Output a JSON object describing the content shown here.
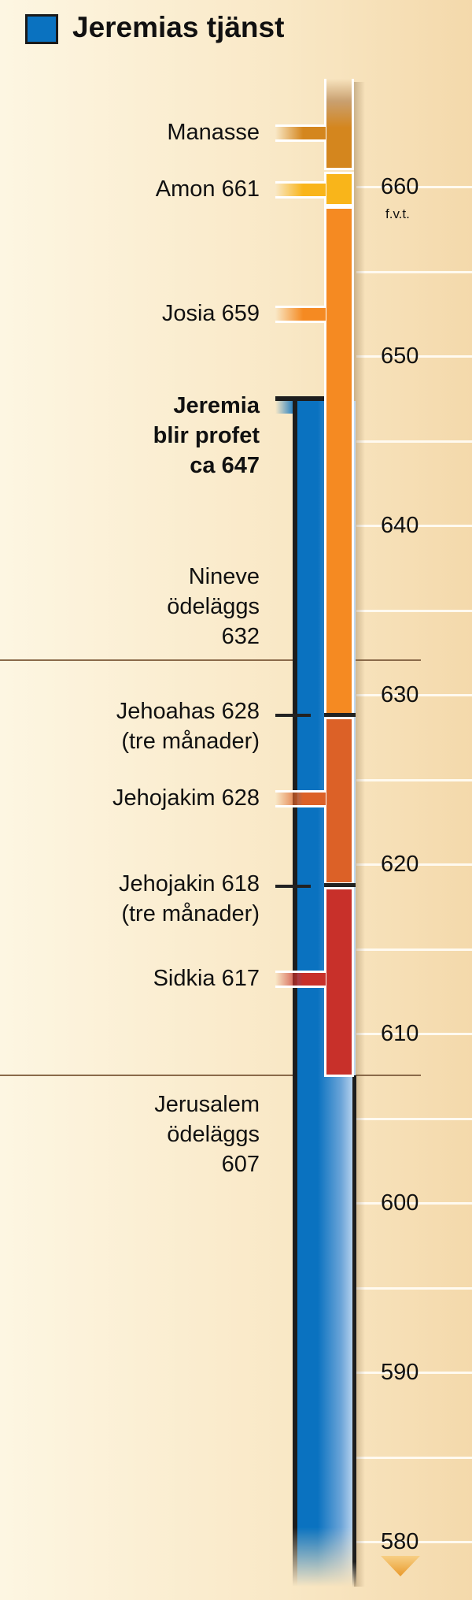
{
  "title": "Jeremias tjänst",
  "legend_color": "#0a72c0",
  "unit": "f.v.t.",
  "axis_ticks": [
    "660",
    "650",
    "640",
    "630",
    "620",
    "610",
    "600",
    "590",
    "580"
  ],
  "kings": [
    {
      "label": "Manasse",
      "color": "#d4861e"
    },
    {
      "label": "Amon 661",
      "color": "#f9b51a"
    },
    {
      "label": "Josia 659",
      "color": "#f58a22"
    },
    {
      "label": "Jehojakim 628",
      "color": "#dc6127"
    },
    {
      "label": "Sidkia 617",
      "color": "#c8302a"
    }
  ],
  "short_reigns": [
    {
      "line1": "Jehoahas 628",
      "line2": "(tre månader)"
    },
    {
      "line1": "Jehojakin 618",
      "line2": "(tre månader)"
    }
  ],
  "events": {
    "jeremia": [
      "Jeremia",
      "blir profet",
      "ca 647"
    ],
    "nineve": [
      "Nineve",
      "ödeläggs",
      "632"
    ],
    "jerusalem": [
      "Jerusalem",
      "ödeläggs",
      "607"
    ]
  }
}
